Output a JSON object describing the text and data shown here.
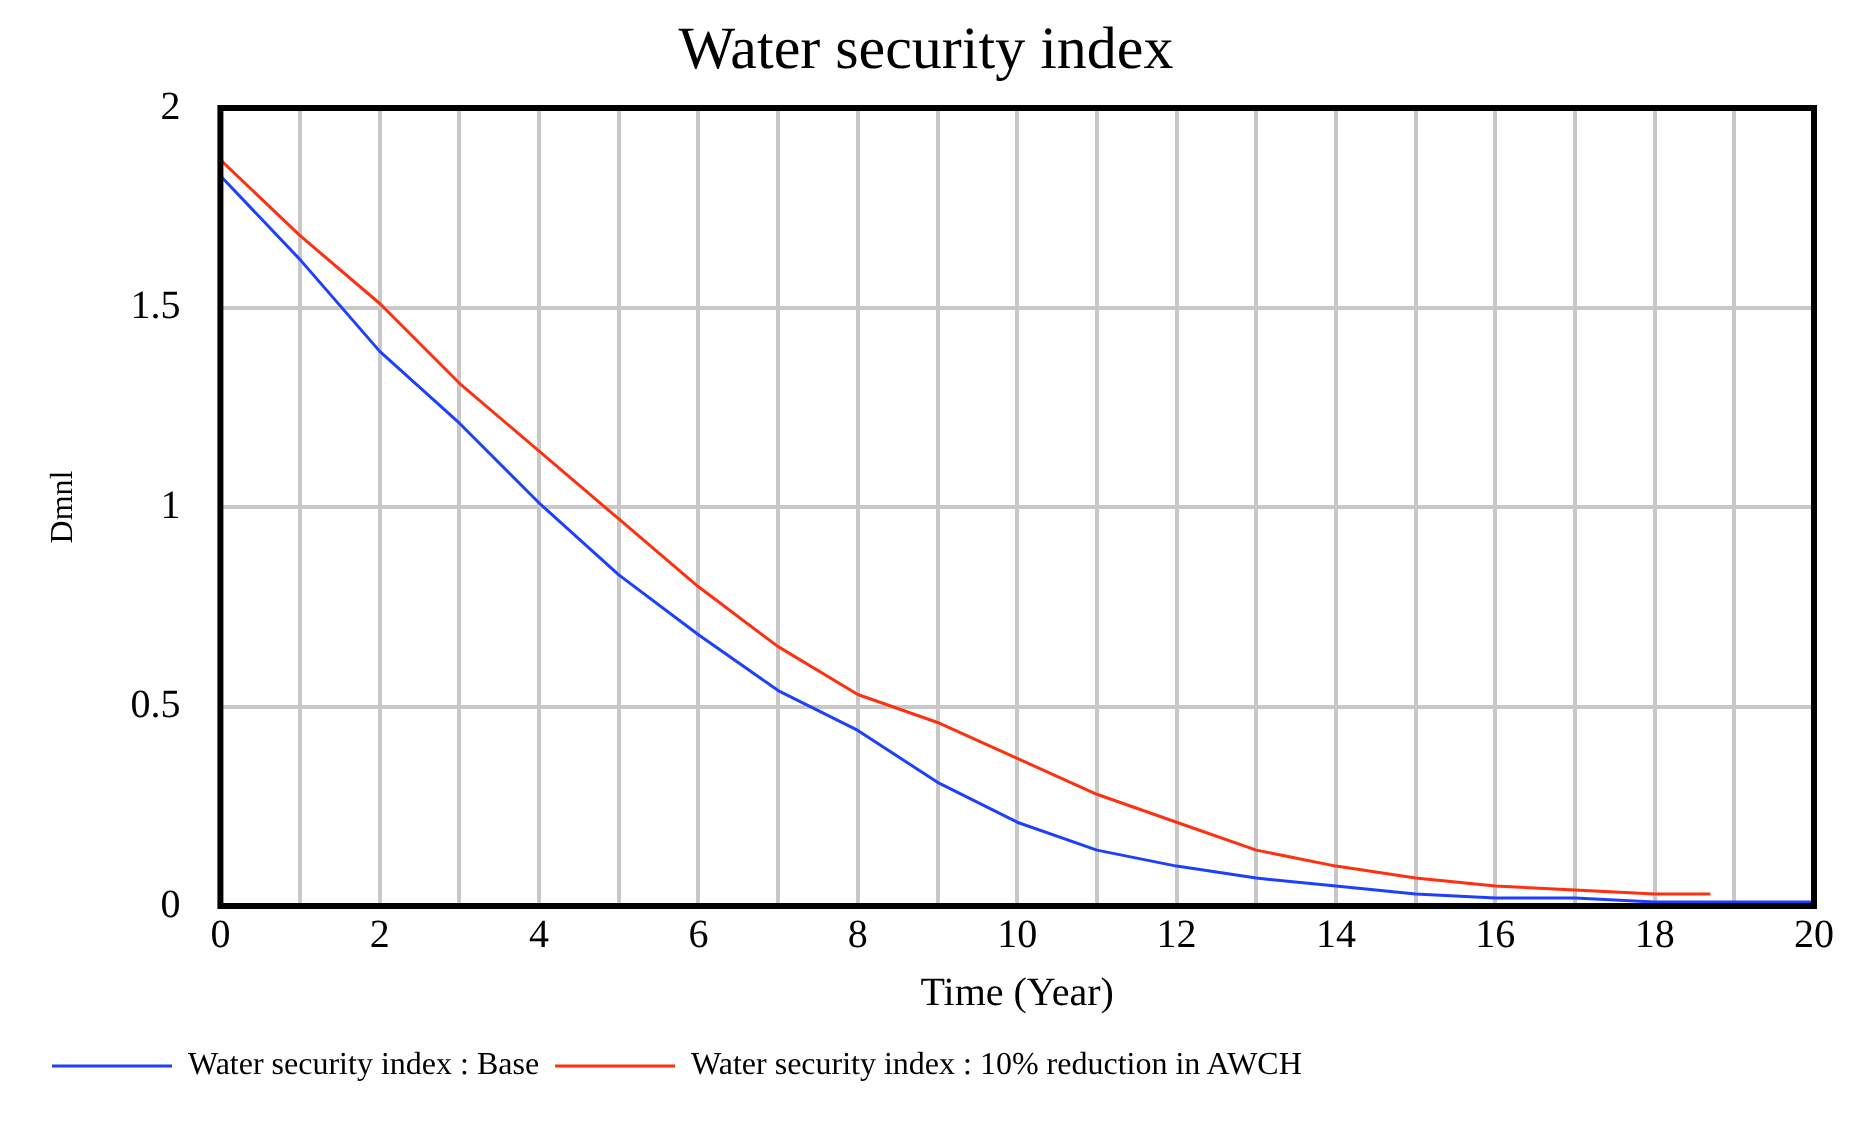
{
  "chart_data": {
    "type": "line",
    "title": "Water security index",
    "xlabel": "Time (Year)",
    "ylabel": "Dmnl",
    "xlim": [
      0,
      20
    ],
    "xticks": [
      0,
      {
        "value": 1,
        "label": null
      },
      2,
      {
        "value": 3,
        "label": null
      },
      4,
      {
        "value": 5,
        "label": null
      },
      6,
      {
        "value": 7,
        "label": null
      },
      8,
      {
        "value": 9,
        "label": null
      },
      10,
      {
        "value": 11,
        "label": null
      },
      12,
      {
        "value": 13,
        "label": null
      },
      14,
      {
        "value": 15,
        "label": null
      },
      16,
      {
        "value": 17,
        "label": null
      },
      18,
      {
        "value": 19,
        "label": null
      },
      20
    ],
    "ylim": [
      0,
      2
    ],
    "yticks": [
      0,
      0.5,
      1,
      1.5,
      2
    ],
    "grid": true,
    "legend": "bottom",
    "marker": "none",
    "line_style": "solid",
    "series": [
      {
        "name": "Water security index : Base",
        "color": "#1f3fff",
        "x": [
          0,
          1,
          2,
          3,
          4,
          5,
          6,
          7,
          8,
          9,
          10,
          11,
          12,
          13,
          14,
          15,
          16,
          17,
          18,
          19,
          20
        ],
        "values": [
          1.83,
          1.62,
          1.39,
          1.21,
          1.01,
          0.83,
          0.68,
          0.54,
          0.44,
          0.31,
          0.21,
          0.14,
          0.1,
          0.07,
          0.05,
          0.03,
          0.02,
          0.02,
          0.01,
          0.01,
          0.01
        ]
      },
      {
        "name": "Water security index : 10% reduction in AWCH",
        "color": "#ff3010",
        "x": [
          0,
          1,
          2,
          3,
          4,
          5,
          6,
          7,
          8,
          9,
          10,
          11,
          12,
          13,
          14,
          15,
          16,
          17,
          18,
          18.7
        ],
        "values": [
          1.87,
          1.68,
          1.51,
          1.31,
          1.14,
          0.97,
          0.8,
          0.65,
          0.53,
          0.46,
          0.37,
          0.28,
          0.21,
          0.14,
          0.1,
          0.07,
          0.05,
          0.04,
          0.03,
          0.03
        ]
      }
    ]
  }
}
